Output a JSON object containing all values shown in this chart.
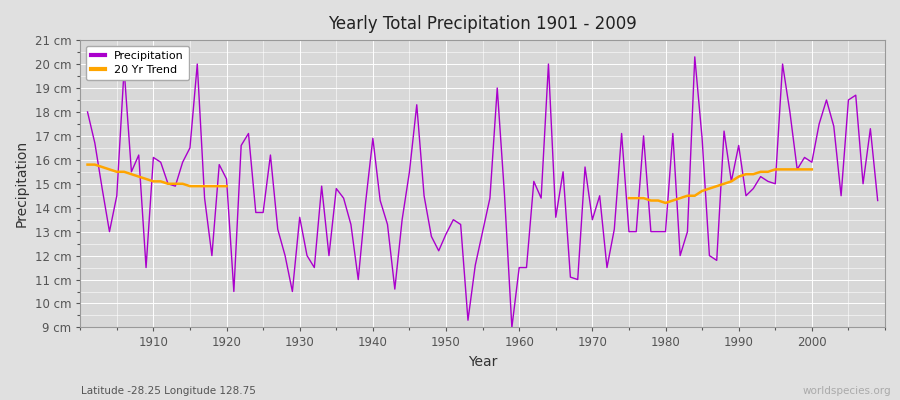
{
  "title": "Yearly Total Precipitation 1901 - 2009",
  "xlabel": "Year",
  "ylabel": "Precipitation",
  "subtitle": "Latitude -28.25 Longitude 128.75",
  "watermark": "worldspecies.org",
  "years": [
    1901,
    1902,
    1903,
    1904,
    1905,
    1906,
    1907,
    1908,
    1909,
    1910,
    1911,
    1912,
    1913,
    1914,
    1915,
    1916,
    1917,
    1918,
    1919,
    1920,
    1921,
    1922,
    1923,
    1924,
    1925,
    1926,
    1927,
    1928,
    1929,
    1930,
    1931,
    1932,
    1933,
    1934,
    1935,
    1936,
    1937,
    1938,
    1939,
    1940,
    1941,
    1942,
    1943,
    1944,
    1945,
    1946,
    1947,
    1948,
    1949,
    1950,
    1951,
    1952,
    1953,
    1954,
    1955,
    1956,
    1957,
    1958,
    1959,
    1960,
    1961,
    1962,
    1963,
    1964,
    1965,
    1966,
    1967,
    1968,
    1969,
    1970,
    1971,
    1972,
    1973,
    1974,
    1975,
    1976,
    1977,
    1978,
    1979,
    1980,
    1981,
    1982,
    1983,
    1984,
    1985,
    1986,
    1987,
    1988,
    1989,
    1990,
    1991,
    1992,
    1993,
    1994,
    1995,
    1996,
    1997,
    1998,
    1999,
    2000,
    2001,
    2002,
    2003,
    2004,
    2005,
    2006,
    2007,
    2008,
    2009
  ],
  "precip": [
    18.0,
    16.7,
    14.8,
    13.0,
    14.5,
    19.8,
    15.5,
    16.2,
    11.5,
    16.1,
    15.9,
    15.0,
    14.9,
    15.9,
    16.5,
    20.0,
    14.4,
    12.0,
    15.8,
    15.2,
    10.5,
    16.6,
    17.1,
    13.8,
    13.8,
    16.2,
    13.1,
    12.0,
    10.5,
    13.6,
    12.0,
    11.5,
    14.9,
    12.0,
    14.8,
    14.4,
    13.3,
    11.0,
    14.2,
    16.9,
    14.3,
    13.3,
    10.6,
    13.5,
    15.5,
    18.3,
    14.5,
    12.8,
    12.2,
    12.9,
    13.5,
    13.3,
    9.3,
    11.6,
    13.0,
    14.4,
    19.0,
    14.5,
    9.0,
    11.5,
    11.5,
    15.1,
    14.4,
    20.0,
    13.6,
    15.5,
    11.1,
    11.0,
    15.7,
    13.5,
    14.5,
    11.5,
    13.1,
    17.1,
    13.0,
    13.0,
    17.0,
    13.0,
    13.0,
    13.0,
    17.1,
    12.0,
    13.0,
    20.3,
    16.9,
    12.0,
    11.8,
    17.2,
    15.1,
    16.6,
    14.5,
    14.8,
    15.3,
    15.1,
    15.0,
    20.0,
    18.0,
    15.6,
    16.1,
    15.9,
    17.5,
    18.5,
    17.4,
    14.5,
    18.5,
    18.7,
    15.0,
    17.3,
    14.3
  ],
  "trend_seg1_years": [
    1901,
    1902,
    1903,
    1904,
    1905,
    1906,
    1907,
    1908,
    1909,
    1910,
    1911,
    1912,
    1913,
    1914,
    1915,
    1916,
    1917,
    1918,
    1919,
    1920
  ],
  "trend_seg1_values": [
    15.8,
    15.8,
    15.7,
    15.6,
    15.5,
    15.5,
    15.4,
    15.3,
    15.2,
    15.1,
    15.1,
    15.0,
    15.0,
    15.0,
    14.9,
    14.9,
    14.9,
    14.9,
    14.9,
    14.9
  ],
  "trend_seg2_years": [
    1975,
    1976,
    1977,
    1978,
    1979,
    1980,
    1981,
    1982,
    1983,
    1984,
    1985,
    1986,
    1987,
    1988,
    1989,
    1990,
    1991,
    1992,
    1993,
    1994,
    1995,
    1996,
    1997,
    1998,
    1999,
    2000
  ],
  "trend_seg2_values": [
    14.4,
    14.4,
    14.4,
    14.3,
    14.3,
    14.2,
    14.3,
    14.4,
    14.5,
    14.5,
    14.7,
    14.8,
    14.9,
    15.0,
    15.1,
    15.3,
    15.4,
    15.4,
    15.5,
    15.5,
    15.6,
    15.6,
    15.6,
    15.6,
    15.6,
    15.6
  ],
  "precip_color": "#AA00CC",
  "trend_color": "#FFA500",
  "bg_color": "#E0E0E0",
  "plot_bg_color": "#D8D8D8",
  "grid_major_color": "#FFFFFF",
  "grid_minor_color": "#CCCCCC",
  "ylim": [
    9,
    21
  ],
  "yticks": [
    9,
    10,
    11,
    12,
    13,
    14,
    15,
    16,
    17,
    18,
    19,
    20,
    21
  ],
  "ytick_labels": [
    "9 cm",
    "10 cm",
    "11 cm",
    "12 cm",
    "13 cm",
    "14 cm",
    "15 cm",
    "16 cm",
    "17 cm",
    "18 cm",
    "19 cm",
    "20 cm",
    "21 cm"
  ],
  "xlim": [
    1900,
    2010
  ],
  "xticks": [
    1910,
    1920,
    1930,
    1940,
    1950,
    1960,
    1970,
    1980,
    1990,
    2000
  ]
}
